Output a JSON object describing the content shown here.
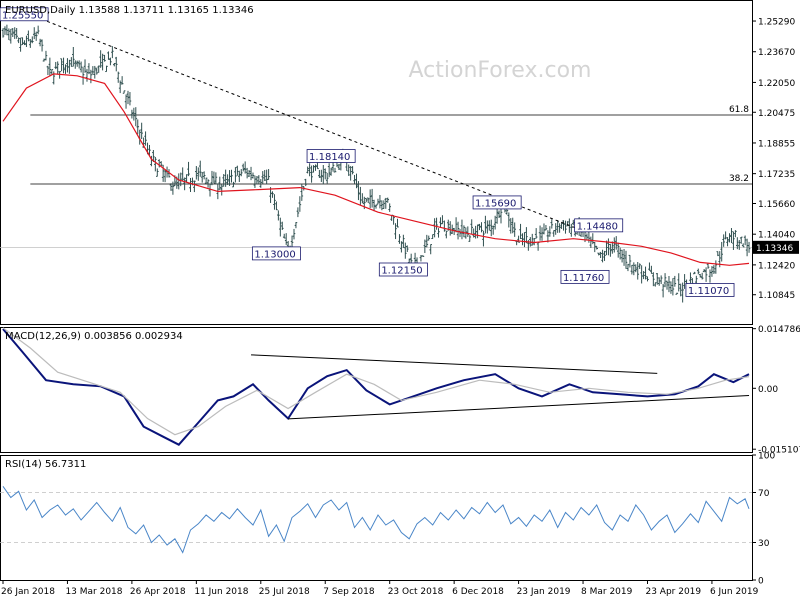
{
  "colors": {
    "background": "#ffffff",
    "frame": "#000000",
    "bar": "#2f4f4f",
    "ma_line": "#e0141e",
    "macd_line": "#0a147a",
    "signal_line": "#bcbcbc",
    "rsi_line": "#4a86c8",
    "trendline": "#000000",
    "label_text": "#1a1a6e",
    "watermark": "#d4d4d4",
    "price_tag_bg": "#000000",
    "price_tag_text": "#ffffff",
    "reference_line": "#c0c0c0"
  },
  "watermark": "ActionForex.com",
  "chart_data": [
    {
      "type": "ohlc",
      "header": "EURUSD,Daily  1.13588 1.13711 1.13165 1.13346",
      "ylim": [
        1.093,
        1.264
      ],
      "y_ticks": [
        "1.25290",
        "1.23670",
        "1.22050",
        "1.20475",
        "1.18855",
        "1.17235",
        "1.15660",
        "1.14040",
        "1.12420",
        "1.10845"
      ],
      "y_tick_values": [
        1.2529,
        1.2367,
        1.2205,
        1.20475,
        1.18855,
        1.17235,
        1.1566,
        1.1404,
        1.1242,
        1.10845
      ],
      "last_price": "1.13346",
      "last_price_value": 1.13346,
      "fib_levels": [
        {
          "label": "61.8",
          "value": 1.2033
        },
        {
          "label": "38.2",
          "value": 1.1669
        }
      ],
      "moving_average": {
        "description": "red moving average",
        "points": [
          [
            0,
            1.2
          ],
          [
            12,
            1.2175
          ],
          [
            26,
            1.225
          ],
          [
            38,
            1.224
          ],
          [
            52,
            1.22
          ],
          [
            62,
            1.205
          ],
          [
            76,
            1.18
          ],
          [
            90,
            1.169
          ],
          [
            110,
            1.163
          ],
          [
            132,
            1.164
          ],
          [
            152,
            1.165
          ],
          [
            170,
            1.161
          ],
          [
            192,
            1.152
          ],
          [
            212,
            1.147
          ],
          [
            232,
            1.142
          ],
          [
            252,
            1.138
          ],
          [
            272,
            1.136
          ],
          [
            292,
            1.138
          ],
          [
            312,
            1.136
          ],
          [
            327,
            1.134
          ],
          [
            342,
            1.1305
          ],
          [
            357,
            1.1255
          ],
          [
            372,
            1.124
          ],
          [
            382,
            1.125
          ]
        ]
      },
      "price_path": [
        [
          0,
          1.248
        ],
        [
          10,
          1.24
        ],
        [
          18,
          1.245
        ],
        [
          24,
          1.225
        ],
        [
          34,
          1.232
        ],
        [
          44,
          1.224
        ],
        [
          56,
          1.234
        ],
        [
          66,
          1.205
        ],
        [
          76,
          1.18
        ],
        [
          88,
          1.166
        ],
        [
          100,
          1.172
        ],
        [
          112,
          1.166
        ],
        [
          124,
          1.174
        ],
        [
          136,
          1.168
        ],
        [
          146,
          1.13
        ],
        [
          156,
          1.174
        ],
        [
          166,
          1.172
        ],
        [
          176,
          1.181
        ],
        [
          184,
          1.157
        ],
        [
          196,
          1.159
        ],
        [
          210,
          1.122
        ],
        [
          224,
          1.146
        ],
        [
          238,
          1.141
        ],
        [
          250,
          1.144
        ],
        [
          256,
          1.157
        ],
        [
          264,
          1.137
        ],
        [
          276,
          1.139
        ],
        [
          286,
          1.146
        ],
        [
          296,
          1.142
        ],
        [
          306,
          1.128
        ],
        [
          312,
          1.135
        ],
        [
          322,
          1.124
        ],
        [
          334,
          1.117
        ],
        [
          346,
          1.111
        ],
        [
          354,
          1.118
        ],
        [
          364,
          1.123
        ],
        [
          372,
          1.141
        ],
        [
          378,
          1.137
        ],
        [
          382,
          1.134
        ]
      ],
      "labels": [
        {
          "text": "1.25550",
          "x": 0,
          "y": 1.2562,
          "anchor": "left-edge"
        },
        {
          "text": "1.18140",
          "x": 168,
          "y": 1.1814
        },
        {
          "text": "1.13000",
          "x": 140,
          "y": 1.13
        },
        {
          "text": "1.12150",
          "x": 205,
          "y": 1.1215
        },
        {
          "text": "1.15690",
          "x": 253,
          "y": 1.1569
        },
        {
          "text": "1.14480",
          "x": 305,
          "y": 1.1448
        },
        {
          "text": "1.11760",
          "x": 298,
          "y": 1.1176
        },
        {
          "text": "1.11070",
          "x": 362,
          "y": 1.1107
        }
      ],
      "trendline": {
        "from": [
          14,
          1.2562
        ],
        "to": [
          300,
          1.141
        ],
        "style": "dotted"
      },
      "x_ticks": [
        "26 Jan 2018",
        "13 Mar 2018",
        "26 Apr 2018",
        "11 Jun 2018",
        "25 Jul 2018",
        "7 Sep 2018",
        "23 Oct 2018",
        "6 Dec 2018",
        "23 Jan 2019",
        "8 Mar 2019",
        "23 Apr 2019",
        "6 Jun 2019"
      ],
      "x_tick_index": [
        0,
        33,
        66,
        99,
        132,
        165,
        198,
        231,
        264,
        297,
        330,
        363
      ]
    },
    {
      "type": "line",
      "header": "MACD(12,26,9) 0.003856 0.002934",
      "ylim": [
        -0.0158,
        0.0152
      ],
      "y_ticks": [
        "0.014786",
        "0.00",
        "-0.015107"
      ],
      "y_tick_values": [
        0.014786,
        0.0,
        -0.015107
      ],
      "series": [
        {
          "role": "macd",
          "points": [
            [
              0,
              0.0147
            ],
            [
              10,
              0.009
            ],
            [
              22,
              0.002
            ],
            [
              36,
              0.001
            ],
            [
              50,
              0.0005
            ],
            [
              62,
              -0.002
            ],
            [
              72,
              -0.0095
            ],
            [
              82,
              -0.012
            ],
            [
              90,
              -0.014
            ],
            [
              100,
              -0.0085
            ],
            [
              110,
              -0.003
            ],
            [
              118,
              -0.002
            ],
            [
              128,
              0.001
            ],
            [
              136,
              -0.003
            ],
            [
              146,
              -0.0075
            ],
            [
              156,
              0.0
            ],
            [
              166,
              0.003
            ],
            [
              176,
              0.0045
            ],
            [
              186,
              -0.0005
            ],
            [
              198,
              -0.004
            ],
            [
              210,
              -0.002
            ],
            [
              222,
              0.0
            ],
            [
              236,
              0.002
            ],
            [
              252,
              0.0035
            ],
            [
              264,
              0.0
            ],
            [
              276,
              -0.002
            ],
            [
              290,
              0.001
            ],
            [
              302,
              -0.001
            ],
            [
              316,
              -0.0015
            ],
            [
              330,
              -0.002
            ],
            [
              344,
              -0.0015
            ],
            [
              356,
              0.0005
            ],
            [
              364,
              0.0035
            ],
            [
              374,
              0.0015
            ],
            [
              382,
              0.0035
            ]
          ]
        },
        {
          "role": "signal",
          "points": [
            [
              0,
              0.015
            ],
            [
              14,
              0.01
            ],
            [
              28,
              0.004
            ],
            [
              44,
              0.0015
            ],
            [
              60,
              -0.001
            ],
            [
              74,
              -0.0075
            ],
            [
              88,
              -0.0115
            ],
            [
              100,
              -0.0095
            ],
            [
              114,
              -0.0045
            ],
            [
              130,
              -0.0005
            ],
            [
              146,
              -0.005
            ],
            [
              160,
              -0.001
            ],
            [
              176,
              0.0035
            ],
            [
              190,
              0.001
            ],
            [
              204,
              -0.003
            ],
            [
              222,
              -0.001
            ],
            [
              244,
              0.002
            ],
            [
              262,
              0.001
            ],
            [
              280,
              -0.001
            ],
            [
              300,
              0.0
            ],
            [
              320,
              -0.001
            ],
            [
              340,
              -0.0015
            ],
            [
              356,
              0.0
            ],
            [
              370,
              0.002
            ],
            [
              382,
              0.0029
            ]
          ]
        }
      ],
      "trendlines": [
        {
          "from": [
            127,
            0.0083
          ],
          "to": [
            335,
            0.0037
          ]
        },
        {
          "from": [
            146,
            -0.0076
          ],
          "to": [
            382,
            -0.0018
          ]
        }
      ]
    },
    {
      "type": "line",
      "header": "RSI(14) 56.7311",
      "ylim": [
        0,
        100
      ],
      "y_ticks": [
        "100",
        "70",
        "30",
        "0"
      ],
      "y_tick_values": [
        100,
        70,
        30,
        0
      ],
      "reference_levels": [
        70,
        30
      ],
      "series": [
        {
          "role": "rsi",
          "points": [
            [
              0,
              75
            ],
            [
              4,
              66
            ],
            [
              8,
              71
            ],
            [
              12,
              56
            ],
            [
              16,
              64
            ],
            [
              20,
              50
            ],
            [
              24,
              56
            ],
            [
              28,
              60
            ],
            [
              32,
              52
            ],
            [
              36,
              57
            ],
            [
              40,
              48
            ],
            [
              44,
              55
            ],
            [
              48,
              62
            ],
            [
              52,
              54
            ],
            [
              56,
              47
            ],
            [
              60,
              58
            ],
            [
              64,
              42
            ],
            [
              68,
              37
            ],
            [
              72,
              44
            ],
            [
              76,
              30
            ],
            [
              80,
              36
            ],
            [
              84,
              28
            ],
            [
              88,
              33
            ],
            [
              92,
              22
            ],
            [
              96,
              40
            ],
            [
              100,
              45
            ],
            [
              104,
              52
            ],
            [
              108,
              47
            ],
            [
              112,
              54
            ],
            [
              116,
              49
            ],
            [
              120,
              57
            ],
            [
              124,
              50
            ],
            [
              128,
              44
            ],
            [
              132,
              56
            ],
            [
              136,
              35
            ],
            [
              140,
              44
            ],
            [
              144,
              31
            ],
            [
              148,
              50
            ],
            [
              152,
              55
            ],
            [
              156,
              61
            ],
            [
              160,
              50
            ],
            [
              164,
              60
            ],
            [
              168,
              64
            ],
            [
              172,
              56
            ],
            [
              176,
              62
            ],
            [
              180,
              42
            ],
            [
              184,
              50
            ],
            [
              188,
              40
            ],
            [
              192,
              52
            ],
            [
              196,
              44
            ],
            [
              200,
              48
            ],
            [
              204,
              38
            ],
            [
              208,
              33
            ],
            [
              212,
              45
            ],
            [
              216,
              50
            ],
            [
              220,
              44
            ],
            [
              224,
              54
            ],
            [
              228,
              48
            ],
            [
              232,
              56
            ],
            [
              236,
              49
            ],
            [
              240,
              58
            ],
            [
              244,
              53
            ],
            [
              248,
              62
            ],
            [
              252,
              54
            ],
            [
              256,
              60
            ],
            [
              260,
              45
            ],
            [
              264,
              50
            ],
            [
              268,
              43
            ],
            [
              272,
              52
            ],
            [
              276,
              47
            ],
            [
              280,
              56
            ],
            [
              284,
              42
            ],
            [
              288,
              54
            ],
            [
              292,
              48
            ],
            [
              296,
              58
            ],
            [
              300,
              52
            ],
            [
              304,
              60
            ],
            [
              308,
              46
            ],
            [
              312,
              40
            ],
            [
              316,
              52
            ],
            [
              320,
              47
            ],
            [
              324,
              60
            ],
            [
              328,
              52
            ],
            [
              332,
              40
            ],
            [
              336,
              47
            ],
            [
              340,
              52
            ],
            [
              344,
              38
            ],
            [
              348,
              45
            ],
            [
              352,
              53
            ],
            [
              356,
              46
            ],
            [
              360,
              63
            ],
            [
              364,
              55
            ],
            [
              368,
              47
            ],
            [
              372,
              66
            ],
            [
              376,
              61
            ],
            [
              380,
              65
            ],
            [
              382,
              57
            ]
          ]
        }
      ]
    }
  ]
}
